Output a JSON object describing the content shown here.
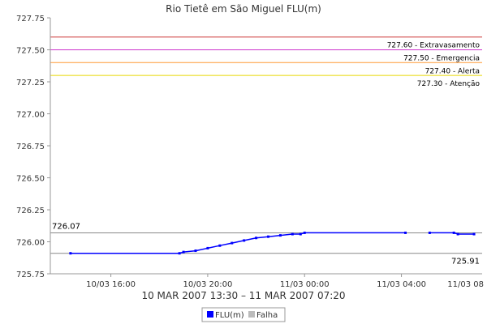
{
  "chart_data": {
    "type": "line",
    "title": "Rio Tietê em São Miguel FLU(m)",
    "xlabel": "10 MAR 2007 13:30 – 11 MAR 2007 07:20",
    "ylabel": "",
    "ylim": [
      725.75,
      727.75
    ],
    "y_ticks": [
      725.75,
      726.0,
      726.25,
      726.5,
      726.75,
      727.0,
      727.25,
      727.5,
      727.75
    ],
    "y_tick_labels": [
      "725.75",
      "726.00",
      "726.25",
      "726.50",
      "726.75",
      "727.00",
      "727.25",
      "727.50",
      "727.75"
    ],
    "xlim": [
      "2007-03-10 13:30",
      "2007-03-11 07:20"
    ],
    "x_ticks": [
      "2007-03-10 16:00",
      "2007-03-10 20:00",
      "2007-03-11 00:00",
      "2007-03-11 04:00",
      "2007-03-11 08:00"
    ],
    "x_tick_labels": [
      "10/03 16:00",
      "10/03 20:00",
      "11/03 00:00",
      "11/03 04:00",
      "11/03 08"
    ],
    "grid": false,
    "legend_position": "bottom-center",
    "series": [
      {
        "name": "FLU(m)",
        "color": "#0000ff",
        "x": [
          "2007-03-10 14:20",
          "2007-03-10 18:50",
          "2007-03-10 19:00",
          "2007-03-10 19:30",
          "2007-03-10 20:00",
          "2007-03-10 20:30",
          "2007-03-10 21:00",
          "2007-03-10 21:30",
          "2007-03-10 22:00",
          "2007-03-10 22:30",
          "2007-03-10 23:00",
          "2007-03-10 23:30",
          "2007-03-10 23:50",
          "2007-03-11 00:00",
          "2007-03-11 04:10",
          null,
          "2007-03-11 05:10",
          "2007-03-11 06:10",
          "2007-03-11 06:20",
          "2007-03-11 07:00"
        ],
        "y": [
          725.91,
          725.91,
          725.92,
          725.93,
          725.95,
          725.97,
          725.99,
          726.01,
          726.03,
          726.04,
          726.05,
          726.06,
          726.06,
          726.07,
          726.07,
          null,
          726.07,
          726.07,
          726.06,
          726.06
        ]
      },
      {
        "name": "Falha",
        "color": "#bbbbbb",
        "x": [],
        "y": []
      }
    ],
    "thresholds": [
      {
        "value": 727.6,
        "label": "727.60 - Extravasamento",
        "color": "#cc3333"
      },
      {
        "value": 727.5,
        "label": "727.50 - Emergencia",
        "color": "#cc33cc"
      },
      {
        "value": 727.4,
        "label": "727.40 - Alerta",
        "color": "#ff9933"
      },
      {
        "value": 727.3,
        "label": "727.30 - Atenção",
        "color": "#e6d800"
      }
    ],
    "max_line": {
      "value": 726.07,
      "label": "726.07",
      "color": "#888888"
    },
    "min_line": {
      "value": 725.91,
      "label": "725.91",
      "color": "#888888"
    }
  }
}
